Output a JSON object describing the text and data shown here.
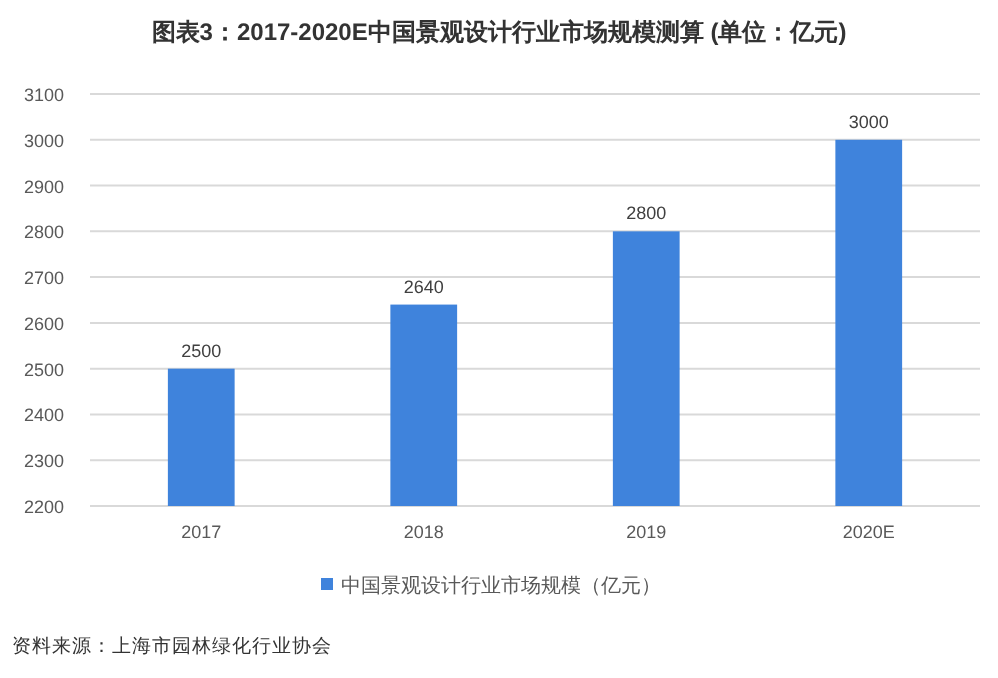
{
  "chart_data": {
    "type": "bar",
    "title": "图表3：2017-2020E中国景观设计行业市场规模测算 (单位：亿元)",
    "categories": [
      "2017",
      "2018",
      "2019",
      "2020E"
    ],
    "series": [
      {
        "name": "中国景观设计行业市场规模（亿元）",
        "color": "#3f83dc",
        "values": [
          2500,
          2640,
          2800,
          3000
        ]
      }
    ],
    "ylim": [
      2200,
      3100
    ],
    "yticks": [
      2200,
      2300,
      2400,
      2500,
      2600,
      2700,
      2800,
      2900,
      3000,
      3100
    ],
    "grid": "y",
    "legend": "bottom",
    "data_labels": true,
    "annotations": [
      "资料来源：上海市园林绿化行业协会"
    ]
  }
}
